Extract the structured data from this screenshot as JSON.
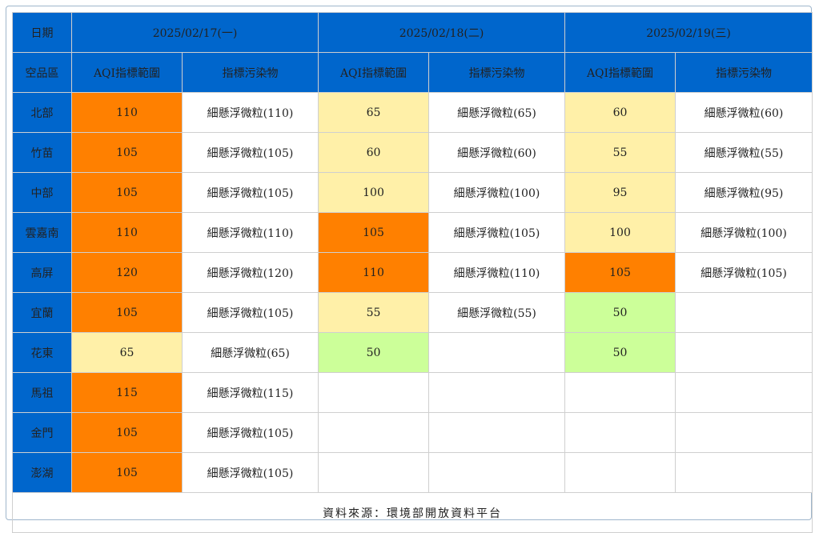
{
  "header": {
    "date_label": "日期",
    "region_label": "空品區",
    "aqi_label": "AQI指標範圍",
    "pollutant_label": "指標污染物",
    "dates": [
      "2025/02/17(一)",
      "2025/02/18(二)",
      "2025/02/19(三)"
    ]
  },
  "level_colors": {
    "good": "#ccff99",
    "moderate": "#fff0a8",
    "sensitive": "#ff8000",
    "empty": "#ffffff"
  },
  "rows": [
    {
      "region": "北部",
      "days": [
        {
          "aqi": "110",
          "pollutant": "細懸浮微粒(110)",
          "level": "sensitive"
        },
        {
          "aqi": "65",
          "pollutant": "細懸浮微粒(65)",
          "level": "moderate"
        },
        {
          "aqi": "60",
          "pollutant": "細懸浮微粒(60)",
          "level": "moderate"
        }
      ]
    },
    {
      "region": "竹苗",
      "days": [
        {
          "aqi": "105",
          "pollutant": "細懸浮微粒(105)",
          "level": "sensitive"
        },
        {
          "aqi": "60",
          "pollutant": "細懸浮微粒(60)",
          "level": "moderate"
        },
        {
          "aqi": "55",
          "pollutant": "細懸浮微粒(55)",
          "level": "moderate"
        }
      ]
    },
    {
      "region": "中部",
      "days": [
        {
          "aqi": "105",
          "pollutant": "細懸浮微粒(105)",
          "level": "sensitive"
        },
        {
          "aqi": "100",
          "pollutant": "細懸浮微粒(100)",
          "level": "moderate"
        },
        {
          "aqi": "95",
          "pollutant": "細懸浮微粒(95)",
          "level": "moderate"
        }
      ]
    },
    {
      "region": "雲嘉南",
      "days": [
        {
          "aqi": "110",
          "pollutant": "細懸浮微粒(110)",
          "level": "sensitive"
        },
        {
          "aqi": "105",
          "pollutant": "細懸浮微粒(105)",
          "level": "sensitive"
        },
        {
          "aqi": "100",
          "pollutant": "細懸浮微粒(100)",
          "level": "moderate"
        }
      ]
    },
    {
      "region": "高屏",
      "days": [
        {
          "aqi": "120",
          "pollutant": "細懸浮微粒(120)",
          "level": "sensitive"
        },
        {
          "aqi": "110",
          "pollutant": "細懸浮微粒(110)",
          "level": "sensitive"
        },
        {
          "aqi": "105",
          "pollutant": "細懸浮微粒(105)",
          "level": "sensitive"
        }
      ]
    },
    {
      "region": "宜蘭",
      "days": [
        {
          "aqi": "105",
          "pollutant": "細懸浮微粒(105)",
          "level": "sensitive"
        },
        {
          "aqi": "55",
          "pollutant": "細懸浮微粒(55)",
          "level": "moderate"
        },
        {
          "aqi": "50",
          "pollutant": "",
          "level": "good"
        }
      ]
    },
    {
      "region": "花東",
      "days": [
        {
          "aqi": "65",
          "pollutant": "細懸浮微粒(65)",
          "level": "moderate"
        },
        {
          "aqi": "50",
          "pollutant": "",
          "level": "good"
        },
        {
          "aqi": "50",
          "pollutant": "",
          "level": "good"
        }
      ]
    },
    {
      "region": "馬祖",
      "days": [
        {
          "aqi": "115",
          "pollutant": "細懸浮微粒(115)",
          "level": "sensitive"
        },
        {
          "aqi": "",
          "pollutant": "",
          "level": "empty"
        },
        {
          "aqi": "",
          "pollutant": "",
          "level": "empty"
        }
      ]
    },
    {
      "region": "金門",
      "days": [
        {
          "aqi": "105",
          "pollutant": "細懸浮微粒(105)",
          "level": "sensitive"
        },
        {
          "aqi": "",
          "pollutant": "",
          "level": "empty"
        },
        {
          "aqi": "",
          "pollutant": "",
          "level": "empty"
        }
      ]
    },
    {
      "region": "澎湖",
      "days": [
        {
          "aqi": "105",
          "pollutant": "細懸浮微粒(105)",
          "level": "sensitive"
        },
        {
          "aqi": "",
          "pollutant": "",
          "level": "empty"
        },
        {
          "aqi": "",
          "pollutant": "",
          "level": "empty"
        }
      ]
    }
  ],
  "source_note": "資料來源：環境部開放資料平台"
}
